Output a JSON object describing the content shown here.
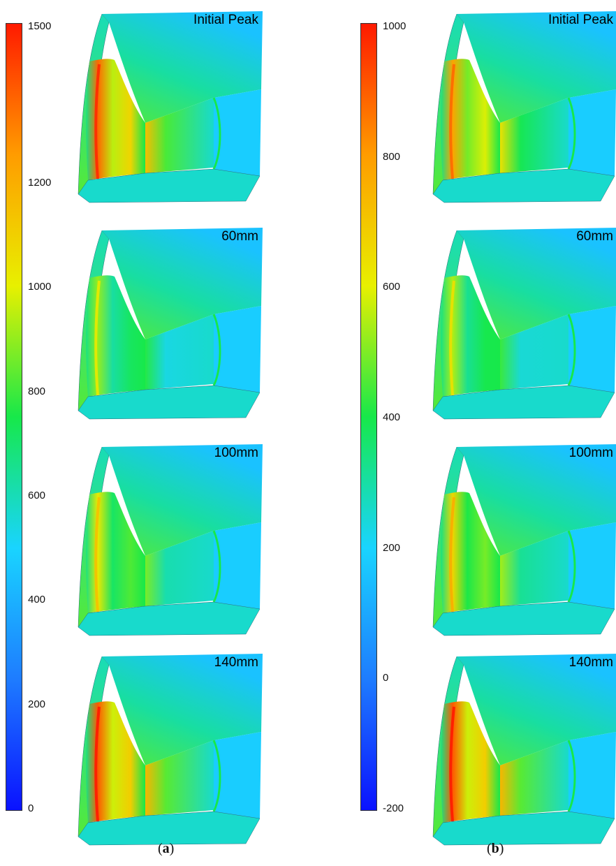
{
  "figure": {
    "panels": [
      {
        "id": "a",
        "caption_open": "(",
        "caption_letter": "a",
        "caption_close": ")",
        "colorbar": {
          "min": 0,
          "max": 1500,
          "ticks": [
            "1500",
            "1200",
            "1000",
            "800",
            "600",
            "400",
            "200",
            "0"
          ],
          "tick_values": [
            1500,
            1200,
            1000,
            800,
            600,
            400,
            200,
            0
          ]
        },
        "views": [
          {
            "label": "Initial Peak",
            "level": 0.9
          },
          {
            "label": "60mm",
            "level": 0.6
          },
          {
            "label": "100mm",
            "level": 0.68
          },
          {
            "label": "140mm",
            "level": 0.92
          }
        ]
      },
      {
        "id": "b",
        "caption_open": "(",
        "caption_letter": "b",
        "caption_close": ")",
        "colorbar": {
          "min": -200,
          "max": 1000,
          "ticks": [
            "1000",
            "800",
            "600",
            "400",
            "200",
            "0",
            "-200"
          ],
          "tick_values": [
            1000,
            800,
            600,
            400,
            200,
            0,
            -200
          ]
        },
        "views": [
          {
            "label": "Initial Peak",
            "level": 0.82
          },
          {
            "label": "60mm",
            "level": 0.62
          },
          {
            "label": "100mm",
            "level": 0.72
          },
          {
            "label": "140mm",
            "level": 0.92
          }
        ]
      }
    ],
    "colormap": [
      "#0a12ff",
      "#1e7cff",
      "#19d4ff",
      "#17e84a",
      "#e8f000",
      "#ff9c00",
      "#ff1a00"
    ]
  }
}
